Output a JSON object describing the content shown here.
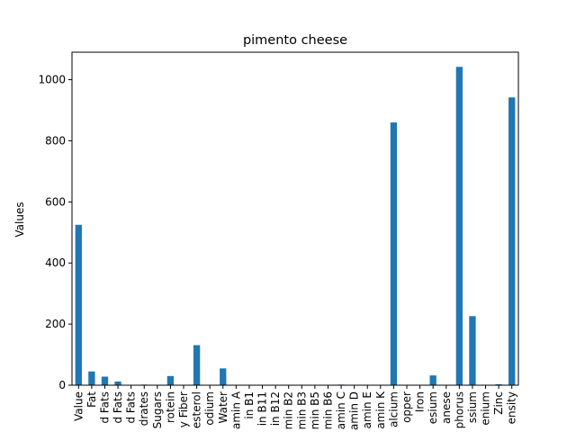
{
  "chart_data": {
    "type": "bar",
    "title": "pimento cheese",
    "xlabel": "",
    "ylabel": "Values",
    "ylim": [
      0,
      1090
    ],
    "yticks": [
      0,
      200,
      400,
      600,
      800,
      1000
    ],
    "grid": false,
    "bar_color": "#1f77b4",
    "categories": [
      "Value",
      "Fat",
      "d Fats",
      "d Fats",
      "d Fats",
      "drates",
      "Sugars",
      "rotein",
      "y Fiber",
      "esterol",
      "odium",
      "Water",
      "amin A",
      "in B1",
      "in B11",
      "in B12",
      "min B2",
      "min B3",
      "min B5",
      "min B6",
      "amin C",
      "amin D",
      "amin E",
      "amin K",
      "alcium",
      "opper",
      "Iron",
      "esium",
      "anese",
      "phorus",
      "ssium",
      "enium",
      "Zinc",
      "ensity"
    ],
    "values": [
      525,
      45,
      28,
      12,
      1,
      2,
      0.5,
      30,
      0,
      131,
      0,
      55,
      0.3,
      0.03,
      0,
      0.2,
      0.3,
      0.1,
      0.3,
      0.1,
      2,
      0.1,
      0.1,
      0.1,
      860,
      0.1,
      0.4,
      32,
      0.01,
      1042,
      226,
      0.3,
      3,
      942
    ]
  }
}
